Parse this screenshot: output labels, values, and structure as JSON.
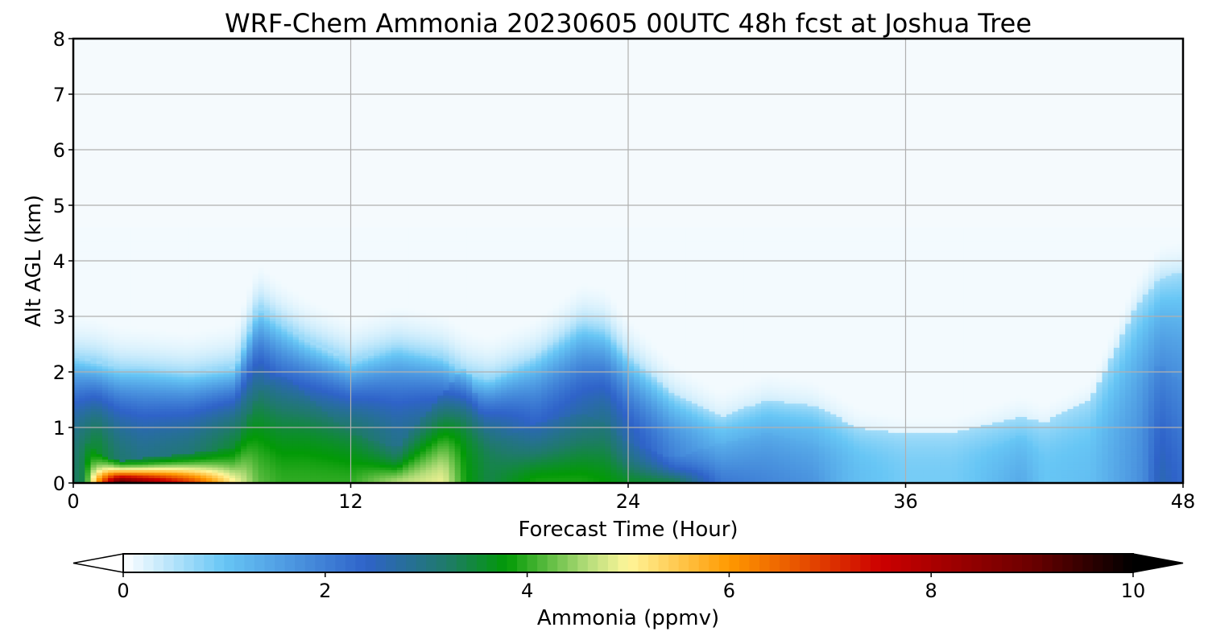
{
  "chart_data": {
    "type": "heatmap",
    "title": "WRF-Chem Ammonia  20230605 00UTC 48h fcst at Joshua Tree",
    "xlabel": "Forecast Time (Hour)",
    "ylabel": "Alt AGL (km)",
    "xlim": [
      0,
      48
    ],
    "ylim": [
      0,
      8
    ],
    "xticks": [
      "0",
      "12",
      "24",
      "36",
      "48"
    ],
    "yticks": [
      "0",
      "1",
      "2",
      "3",
      "4",
      "5",
      "6",
      "7",
      "8"
    ],
    "grid": true,
    "colorbar": {
      "label": "Ammonia  (ppmv)",
      "range": [
        0,
        10
      ],
      "ticks": [
        "0",
        "2",
        "4",
        "6",
        "8",
        "10"
      ],
      "extend": "both",
      "colormap": [
        {
          "v": 0.0,
          "color": "#ffffff"
        },
        {
          "v": 1.0,
          "color": "#67c6f5"
        },
        {
          "v": 2.4,
          "color": "#2f63c9"
        },
        {
          "v": 3.2,
          "color": "#1f7a6a"
        },
        {
          "v": 3.8,
          "color": "#029a06"
        },
        {
          "v": 4.6,
          "color": "#b5dd7a"
        },
        {
          "v": 5.0,
          "color": "#fff69a"
        },
        {
          "v": 6.0,
          "color": "#ff9900"
        },
        {
          "v": 7.5,
          "color": "#cc0000"
        },
        {
          "v": 9.0,
          "color": "#6b0000"
        },
        {
          "v": 10.0,
          "color": "#000000"
        }
      ]
    },
    "profile_hours": [
      0,
      1,
      2,
      3,
      5,
      7,
      8,
      9,
      10,
      12,
      14,
      16,
      17,
      18,
      20,
      22,
      23,
      24,
      26,
      28,
      30,
      32,
      34,
      36,
      38,
      40,
      41,
      42,
      44,
      46,
      47,
      48
    ],
    "mixing_height_km": [
      2.3,
      2.2,
      2.1,
      2.1,
      2.0,
      2.1,
      3.2,
      2.9,
      2.6,
      2.2,
      2.5,
      2.3,
      2.0,
      1.9,
      2.3,
      2.9,
      2.8,
      2.3,
      1.6,
      1.2,
      1.5,
      1.4,
      1.0,
      0.9,
      0.9,
      1.1,
      1.2,
      1.1,
      1.5,
      3.2,
      3.7,
      3.8
    ],
    "surface_ppmv": [
      1.6,
      5.8,
      9.4,
      8.6,
      7.0,
      5.0,
      4.2,
      4.0,
      4.0,
      4.0,
      4.6,
      4.9,
      3.8,
      3.4,
      3.9,
      3.9,
      3.8,
      3.6,
      3.4,
      2.1,
      1.9,
      1.7,
      1.0,
      0.7,
      0.8,
      1.2,
      1.4,
      1.0,
      0.9,
      1.5,
      2.6,
      2.3
    ],
    "plume_depth_km": [
      0.6,
      0.3,
      0.22,
      0.25,
      0.3,
      0.35,
      0.9,
      1.1,
      0.9,
      0.5,
      0.35,
      0.9,
      1.2,
      0.4,
      0.6,
      0.7,
      0.6,
      0.4,
      0.25,
      0.4,
      0.5,
      0.4,
      0.3,
      0.3,
      0.3,
      0.4,
      0.5,
      0.3,
      0.4,
      1.0,
      1.2,
      1.0
    ],
    "mid_ppmv": [
      3.2,
      3.7,
      3.2,
      3.0,
      3.2,
      3.7,
      3.6,
      3.3,
      3.5,
      3.6,
      3.0,
      3.4,
      3.5,
      3.4,
      2.7,
      3.0,
      3.2,
      2.8,
      2.0,
      1.5,
      1.6,
      1.5,
      1.1,
      0.9,
      0.9,
      1.1,
      1.2,
      1.0,
      1.1,
      1.7,
      2.2,
      2.0
    ]
  }
}
